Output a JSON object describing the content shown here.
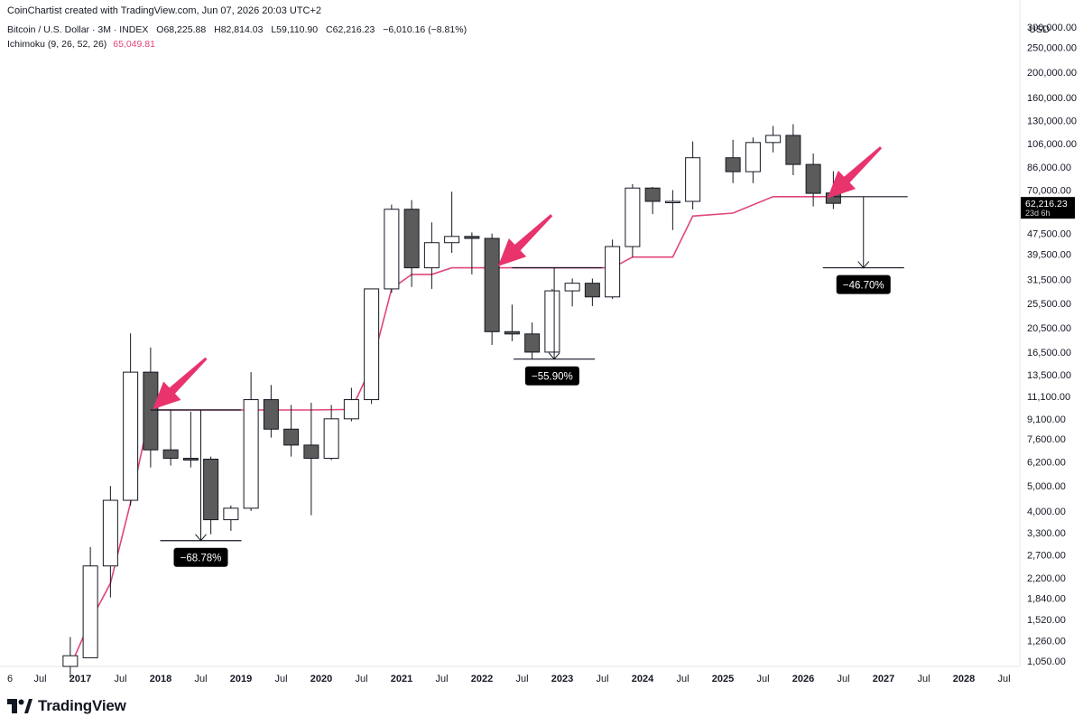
{
  "header": {
    "credit": "CoinChartist created with TradingView.com, Jun 07, 2026 20:03 UTC+2",
    "symbol": "Bitcoin / U.S. Dollar · 3M · INDEX",
    "open": "O68,225.88",
    "high": "H82,814.03",
    "low": "L59,110.90",
    "close": "C62,216.23",
    "change": "−6,010.16 (−8.81%)",
    "ichimoku_label": "Ichimoku (9, 26, 52, 26)",
    "ichimoku_value": "65,049.81"
  },
  "price_axis": {
    "currency": "USD",
    "ticks": [
      300000,
      250000,
      200000,
      160000,
      130000,
      106000,
      86000,
      70000,
      47500,
      39500,
      31500,
      25500,
      20500,
      16500,
      13500,
      11100,
      9100,
      7600,
      6200,
      5000,
      4000,
      3300,
      2700,
      2200,
      1840,
      1520,
      1260,
      1050
    ],
    "tick_labels": [
      "300,000.00",
      "250,000.00",
      "200,000.00",
      "160,000.00",
      "130,000.00",
      "106,000.00",
      "86,000.00",
      "70,000.00",
      "47,500.00",
      "39,500.00",
      "31,500.00",
      "25,500.00",
      "20,500.00",
      "16,500.00",
      "13,500.00",
      "11,100.00",
      "9,100.00",
      "7,600.00",
      "6,200.00",
      "5,000.00",
      "4,000.00",
      "3,300.00",
      "2,700.00",
      "2,200.00",
      "1,840.00",
      "1,520.00",
      "1,260.00",
      "1,050.00"
    ],
    "last_price_label": "62,216.23",
    "countdown_label": "23d 6h"
  },
  "time_axis": {
    "labels": [
      {
        "text": "6",
        "t": 2016.5
      },
      {
        "text": "Jul",
        "t": 2016.5
      },
      {
        "text": "2017",
        "t": 2017.0
      },
      {
        "text": "Jul",
        "t": 2017.5
      },
      {
        "text": "2018",
        "t": 2018.0
      },
      {
        "text": "Jul",
        "t": 2018.5
      },
      {
        "text": "2019",
        "t": 2019.0
      },
      {
        "text": "Jul",
        "t": 2019.5
      },
      {
        "text": "2020",
        "t": 2020.0
      },
      {
        "text": "Jul",
        "t": 2020.5
      },
      {
        "text": "2021",
        "t": 2021.0
      },
      {
        "text": "Jul",
        "t": 2021.5
      },
      {
        "text": "2022",
        "t": 2022.0
      },
      {
        "text": "Jul",
        "t": 2022.5
      },
      {
        "text": "2023",
        "t": 2023.0
      },
      {
        "text": "Jul",
        "t": 2023.5
      },
      {
        "text": "2024",
        "t": 2024.0
      },
      {
        "text": "Jul",
        "t": 2024.5
      },
      {
        "text": "2025",
        "t": 2025.0
      },
      {
        "text": "Jul",
        "t": 2025.5
      },
      {
        "text": "2026",
        "t": 2026.0
      },
      {
        "text": "Jul",
        "t": 2026.5
      },
      {
        "text": "2027",
        "t": 2027.0
      },
      {
        "text": "Jul",
        "t": 2027.5
      },
      {
        "text": "2028",
        "t": 2028.0
      },
      {
        "text": "Jul",
        "t": 2028.5
      }
    ]
  },
  "chart_data": {
    "type": "candlestick",
    "y_scale": "log",
    "ylim": [
      1000,
      330000
    ],
    "xlim": [
      2016.4,
      2028.75
    ],
    "candles": [
      {
        "t": 2016.875,
        "o": 1000,
        "h": 1300,
        "l": 900,
        "c": 1100
      },
      {
        "t": 2017.125,
        "o": 1080,
        "h": 2900,
        "l": 1080,
        "c": 2450
      },
      {
        "t": 2017.375,
        "o": 2450,
        "h": 5000,
        "l": 1850,
        "c": 4400
      },
      {
        "t": 2017.625,
        "o": 4400,
        "h": 19500,
        "l": 4200,
        "c": 13800
      },
      {
        "t": 2017.875,
        "o": 13800,
        "h": 17200,
        "l": 5900,
        "c": 6900
      },
      {
        "t": 2018.125,
        "o": 6900,
        "h": 9900,
        "l": 6000,
        "c": 6400
      },
      {
        "t": 2018.375,
        "o": 6400,
        "h": 9700,
        "l": 5900,
        "c": 6300
      },
      {
        "t": 2018.625,
        "o": 6350,
        "h": 6500,
        "l": 3250,
        "c": 3700
      },
      {
        "t": 2018.875,
        "o": 3700,
        "h": 4200,
        "l": 3350,
        "c": 4100
      },
      {
        "t": 2019.125,
        "o": 4100,
        "h": 13800,
        "l": 4000,
        "c": 10800
      },
      {
        "t": 2019.375,
        "o": 10800,
        "h": 12300,
        "l": 7700,
        "c": 8300
      },
      {
        "t": 2019.625,
        "o": 8300,
        "h": 10300,
        "l": 6500,
        "c": 7200
      },
      {
        "t": 2019.875,
        "o": 7200,
        "h": 10500,
        "l": 3850,
        "c": 6400
      },
      {
        "t": 2020.125,
        "o": 6400,
        "h": 10300,
        "l": 6300,
        "c": 9100
      },
      {
        "t": 2020.375,
        "o": 9100,
        "h": 12000,
        "l": 8900,
        "c": 10800
      },
      {
        "t": 2020.625,
        "o": 10800,
        "h": 29000,
        "l": 10400,
        "c": 29000
      },
      {
        "t": 2020.875,
        "o": 29000,
        "h": 61500,
        "l": 28000,
        "c": 59000
      },
      {
        "t": 2021.125,
        "o": 59000,
        "h": 64000,
        "l": 29500,
        "c": 35000
      },
      {
        "t": 2021.375,
        "o": 35000,
        "h": 52500,
        "l": 29000,
        "c": 43800
      },
      {
        "t": 2021.625,
        "o": 43800,
        "h": 69000,
        "l": 40000,
        "c": 46300
      },
      {
        "t": 2021.875,
        "o": 46300,
        "h": 48000,
        "l": 33000,
        "c": 45500
      },
      {
        "t": 2022.125,
        "o": 45500,
        "h": 47500,
        "l": 17600,
        "c": 19800
      },
      {
        "t": 2022.375,
        "o": 19800,
        "h": 25200,
        "l": 18200,
        "c": 19400
      },
      {
        "t": 2022.625,
        "o": 19400,
        "h": 21500,
        "l": 15500,
        "c": 16500
      },
      {
        "t": 2022.875,
        "o": 16500,
        "h": 29000,
        "l": 16500,
        "c": 28500
      },
      {
        "t": 2023.125,
        "o": 28500,
        "h": 31800,
        "l": 24800,
        "c": 30500
      },
      {
        "t": 2023.375,
        "o": 30500,
        "h": 31800,
        "l": 24900,
        "c": 27000
      },
      {
        "t": 2023.625,
        "o": 27000,
        "h": 45000,
        "l": 26500,
        "c": 42300
      },
      {
        "t": 2023.875,
        "o": 42300,
        "h": 73800,
        "l": 38500,
        "c": 71300
      },
      {
        "t": 2024.125,
        "o": 71300,
        "h": 72000,
        "l": 56500,
        "c": 63300
      },
      {
        "t": 2024.375,
        "o": 63300,
        "h": 70000,
        "l": 49000,
        "c": 63300
      },
      {
        "t": 2024.625,
        "o": 63300,
        "h": 108000,
        "l": 58900,
        "c": 93400
      },
      {
        "t": 2025.125,
        "o": 93400,
        "h": 109600,
        "l": 74500,
        "c": 82500
      },
      {
        "t": 2025.375,
        "o": 82500,
        "h": 111900,
        "l": 74500,
        "c": 107000
      },
      {
        "t": 2025.625,
        "o": 107000,
        "h": 124000,
        "l": 98000,
        "c": 114000
      },
      {
        "t": 2025.875,
        "o": 114000,
        "h": 126000,
        "l": 80000,
        "c": 88000
      },
      {
        "t": 2026.125,
        "o": 88000,
        "h": 97000,
        "l": 60500,
        "c": 68000
      },
      {
        "t": 2026.375,
        "o": 68225.88,
        "h": 82814.03,
        "l": 59110.9,
        "c": 62216.23
      }
    ],
    "ichimoku_line": [
      {
        "t": 2016.875,
        "v": 1000
      },
      {
        "t": 2017.125,
        "v": 1500
      },
      {
        "t": 2017.375,
        "v": 2100
      },
      {
        "t": 2017.625,
        "v": 4300
      },
      {
        "t": 2017.875,
        "v": 9850
      },
      {
        "t": 2018.125,
        "v": 9850
      },
      {
        "t": 2019.875,
        "v": 9850
      },
      {
        "t": 2020.375,
        "v": 9900
      },
      {
        "t": 2020.625,
        "v": 14500
      },
      {
        "t": 2020.875,
        "v": 29000
      },
      {
        "t": 2021.125,
        "v": 33000
      },
      {
        "t": 2021.375,
        "v": 33000
      },
      {
        "t": 2021.625,
        "v": 35000
      },
      {
        "t": 2022.375,
        "v": 35000
      },
      {
        "t": 2023.625,
        "v": 35000
      },
      {
        "t": 2023.875,
        "v": 38500
      },
      {
        "t": 2024.375,
        "v": 38500
      },
      {
        "t": 2024.625,
        "v": 55500
      },
      {
        "t": 2025.125,
        "v": 57000
      },
      {
        "t": 2025.625,
        "v": 66000
      },
      {
        "t": 2026.375,
        "v": 66000
      }
    ],
    "annotations": [
      {
        "label": "−68.78%",
        "top": 9850,
        "bottom": 3070,
        "t_start": 2017.875,
        "t_end": 2019.0,
        "t_arrow": 2018.5,
        "t_label": 2018.5
      },
      {
        "label": "−55.90%",
        "top": 35000,
        "bottom": 15500,
        "t_start": 2022.375,
        "t_end": 2023.5,
        "t_arrow": 2022.9,
        "t_label": 2022.875
      },
      {
        "label": "−46.70%",
        "top": 66000,
        "bottom": 35000,
        "t_start": 2026.375,
        "t_end": 2027.3,
        "t_arrow": 2026.75,
        "t_label": 2026.75
      }
    ],
    "highlight_arrows": [
      {
        "t_tip": 2017.9,
        "v_tip": 9900
      },
      {
        "t_tip": 2022.2,
        "v_tip": 35500
      },
      {
        "t_tip": 2026.3,
        "v_tip": 65000
      }
    ]
  },
  "footer": {
    "logo_text": "TradingView"
  },
  "colors": {
    "bear": "#5b5b5b",
    "bull": "#ffffff",
    "outline": "#131722",
    "ichimoku": "#e0457b",
    "arrow": "#e8336d",
    "label_bg": "#000000",
    "price_tag_bg": "#000000"
  }
}
